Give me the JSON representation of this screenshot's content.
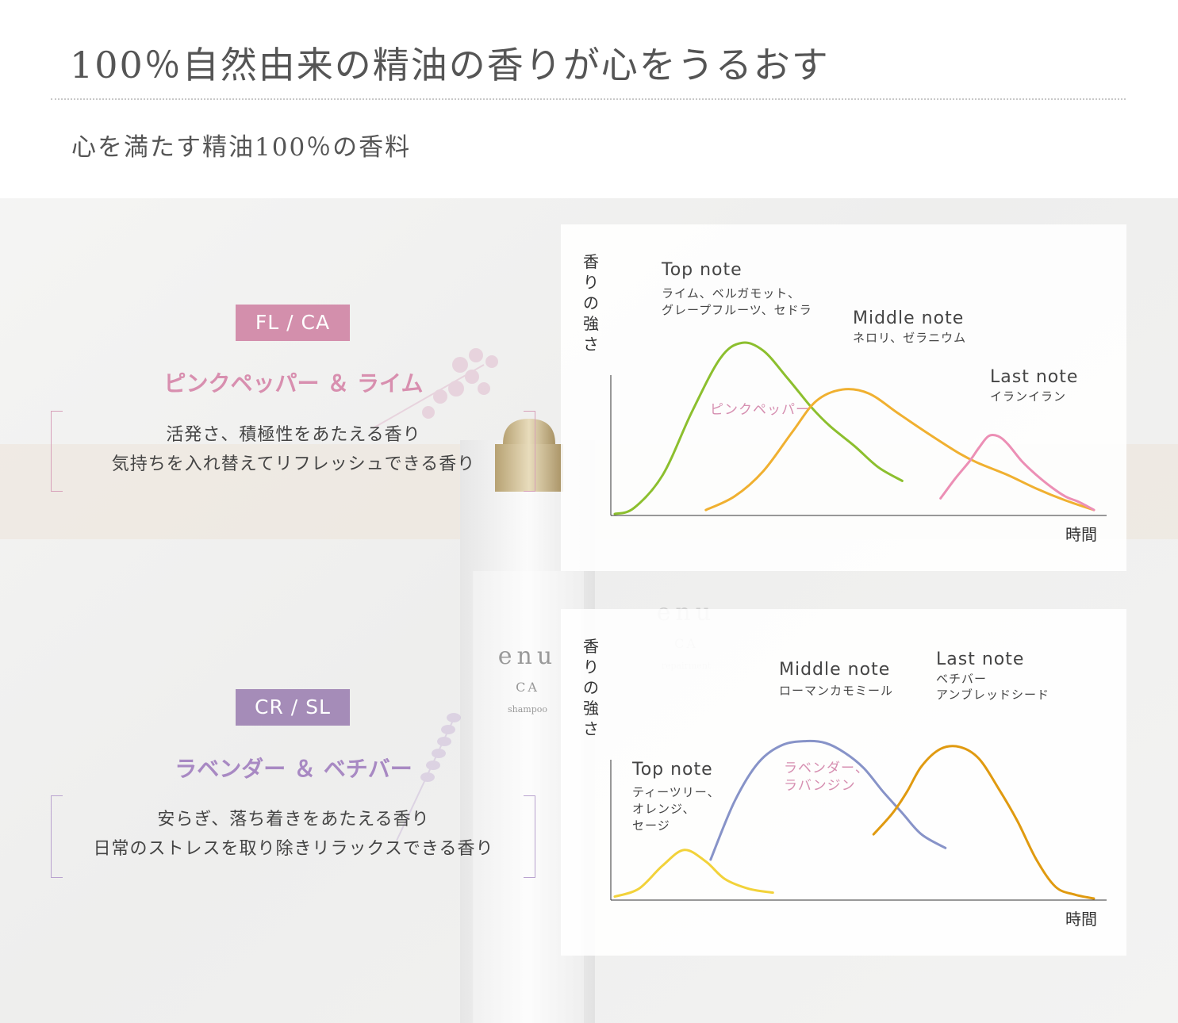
{
  "header": {
    "title": "100％自然由来の精油の香りが心をうるおす",
    "subtitle": "心を満たす精油100％の香料"
  },
  "products": [
    {
      "badge": "FL / CA",
      "scent": "ピンクペッパー ＆ ライム",
      "description": [
        "活発さ、積極性をあたえる香り",
        "気持ちを入れ替えてリフレッシュできる香り"
      ],
      "color": "#d38fac"
    },
    {
      "badge": "CR / SL",
      "scent": "ラベンダー ＆ ベチバー",
      "description": [
        "安らぎ、落ち着きをあたえる香り",
        "日常のストレスを取り除きリラックスできる香り"
      ],
      "color": "#a58cb8"
    }
  ],
  "bottle": {
    "brand": "enu",
    "line": "CA",
    "product": "shampoo",
    "product2": "repairment"
  },
  "chart_data": [
    {
      "type": "line",
      "ylabel": "香りの強さ",
      "xlabel": "時間",
      "ylim": [
        0,
        100
      ],
      "xlim": [
        0,
        100
      ],
      "annotations": [
        {
          "title": "Top note",
          "sub": [
            "ライム、ベルガモット、",
            "グレープフルーツ、セドラ"
          ]
        },
        {
          "title": "Middle note",
          "sub": [
            "ネロリ、ゼラニウム"
          ]
        },
        {
          "title": "Last note",
          "sub": [
            "イランイラン"
          ]
        }
      ],
      "series_label": "ピンクペッパー",
      "series": [
        {
          "note": "Top note",
          "color": "#8cbf2e",
          "x": [
            0,
            4,
            10,
            16,
            22,
            26.5,
            31,
            36,
            41,
            45,
            50,
            55,
            60
          ],
          "y": [
            0,
            3,
            20,
            52,
            80,
            88,
            84,
            70,
            55,
            45,
            35,
            24,
            17
          ]
        },
        {
          "note": "Middle note",
          "color": "#f0b030",
          "x": [
            19,
            25,
            31,
            37,
            42,
            47.5,
            53,
            59,
            65,
            72,
            76,
            82,
            88,
            94,
            100
          ],
          "y": [
            2,
            9,
            22,
            42,
            58,
            64,
            62,
            52,
            42,
            31,
            26,
            20,
            13,
            7,
            2
          ]
        },
        {
          "note": "Last note",
          "color": "#ec8fb5",
          "x": [
            68,
            71,
            74,
            76,
            78,
            80,
            82,
            85,
            88,
            91,
            94,
            97,
            100
          ],
          "y": [
            8,
            18,
            27,
            34,
            40,
            40,
            36,
            27,
            20,
            14,
            9,
            6,
            2
          ]
        }
      ]
    },
    {
      "type": "line",
      "ylabel": "香りの強さ",
      "xlabel": "時間",
      "ylim": [
        0,
        100
      ],
      "xlim": [
        0,
        100
      ],
      "annotations": [
        {
          "title": "Top note",
          "sub": [
            "ティーツリー、",
            "オレンジ、",
            "セージ"
          ]
        },
        {
          "title": "Middle note",
          "sub": [
            "ローマンカモミール"
          ]
        },
        {
          "title": "Last note",
          "sub": [
            "ベチバー",
            "アンブレッドシード"
          ]
        }
      ],
      "series_label": "ラベンダー、ラバンジン",
      "series": [
        {
          "note": "Top note",
          "color": "#f2d23a",
          "x": [
            0,
            5,
            10,
            14.5,
            19,
            23,
            28,
            33
          ],
          "y": [
            1,
            5,
            17,
            25,
            19,
            10,
            5,
            3
          ]
        },
        {
          "note": "Middle note",
          "color": "#8793c8",
          "x": [
            20,
            25,
            30,
            35,
            40,
            44,
            48,
            52,
            56,
            60,
            64,
            69
          ],
          "y": [
            20,
            50,
            70,
            79,
            81,
            80,
            75,
            67,
            55,
            44,
            33,
            26
          ]
        },
        {
          "note": "Last note",
          "color": "#e09a10",
          "x": [
            54,
            58,
            61,
            64,
            68,
            72,
            76,
            80,
            84,
            88,
            92,
            96,
            100
          ],
          "y": [
            33,
            44,
            55,
            68,
            77,
            78,
            72,
            57,
            40,
            20,
            6,
            2,
            0
          ]
        }
      ]
    }
  ]
}
